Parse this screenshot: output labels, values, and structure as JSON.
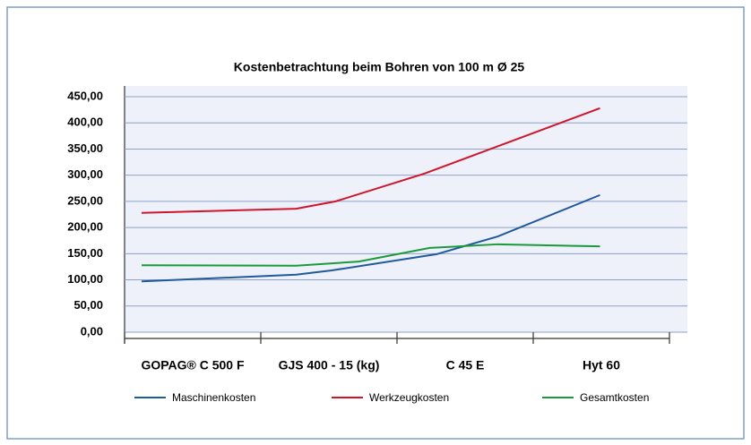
{
  "chart_data": {
    "type": "line",
    "title": "Kostenbetrachtung beim Bohren von 100 m Ø 25",
    "categories": [
      "GOPAG® C 500 F",
      "GJS 400 - 15 (kg)",
      "C 45 E",
      "Hyt 60"
    ],
    "xlim": [
      0,
      4
    ],
    "xticks": [
      0,
      1,
      2,
      3,
      4
    ],
    "ylim": [
      0,
      450
    ],
    "yticks": [
      {
        "value": 0,
        "label": "0,00"
      },
      {
        "value": 50,
        "label": "50,00"
      },
      {
        "value": 100,
        "label": "100,00"
      },
      {
        "value": 150,
        "label": "150,00"
      },
      {
        "value": 200,
        "label": "200,00"
      },
      {
        "value": 250,
        "label": "250,00"
      },
      {
        "value": 300,
        "label": "300,00"
      },
      {
        "value": 350,
        "label": "350,00"
      },
      {
        "value": 400,
        "label": "400,00"
      },
      {
        "value": 450,
        "label": "450,00"
      }
    ],
    "grid": true,
    "legend": "bottom",
    "series": [
      {
        "name": "Maschinenkosten",
        "color": "#1f5a9e",
        "x": [
          0.125,
          1.26,
          1.52,
          2.29,
          2.74,
          3.49
        ],
        "values": [
          97,
          110,
          118,
          149,
          183,
          262
        ]
      },
      {
        "name": "Werkzeugkosten",
        "color": "#d0152b",
        "x": [
          0.125,
          1.26,
          1.55,
          2.2,
          3.49
        ],
        "values": [
          228,
          236,
          250,
          303,
          428
        ]
      },
      {
        "name": "Gesamtkosten",
        "color": "#1a9a3a",
        "x": [
          0.125,
          1.26,
          1.72,
          2.24,
          2.74,
          3.49
        ],
        "values": [
          128,
          127,
          135,
          161,
          168,
          164
        ]
      }
    ]
  }
}
